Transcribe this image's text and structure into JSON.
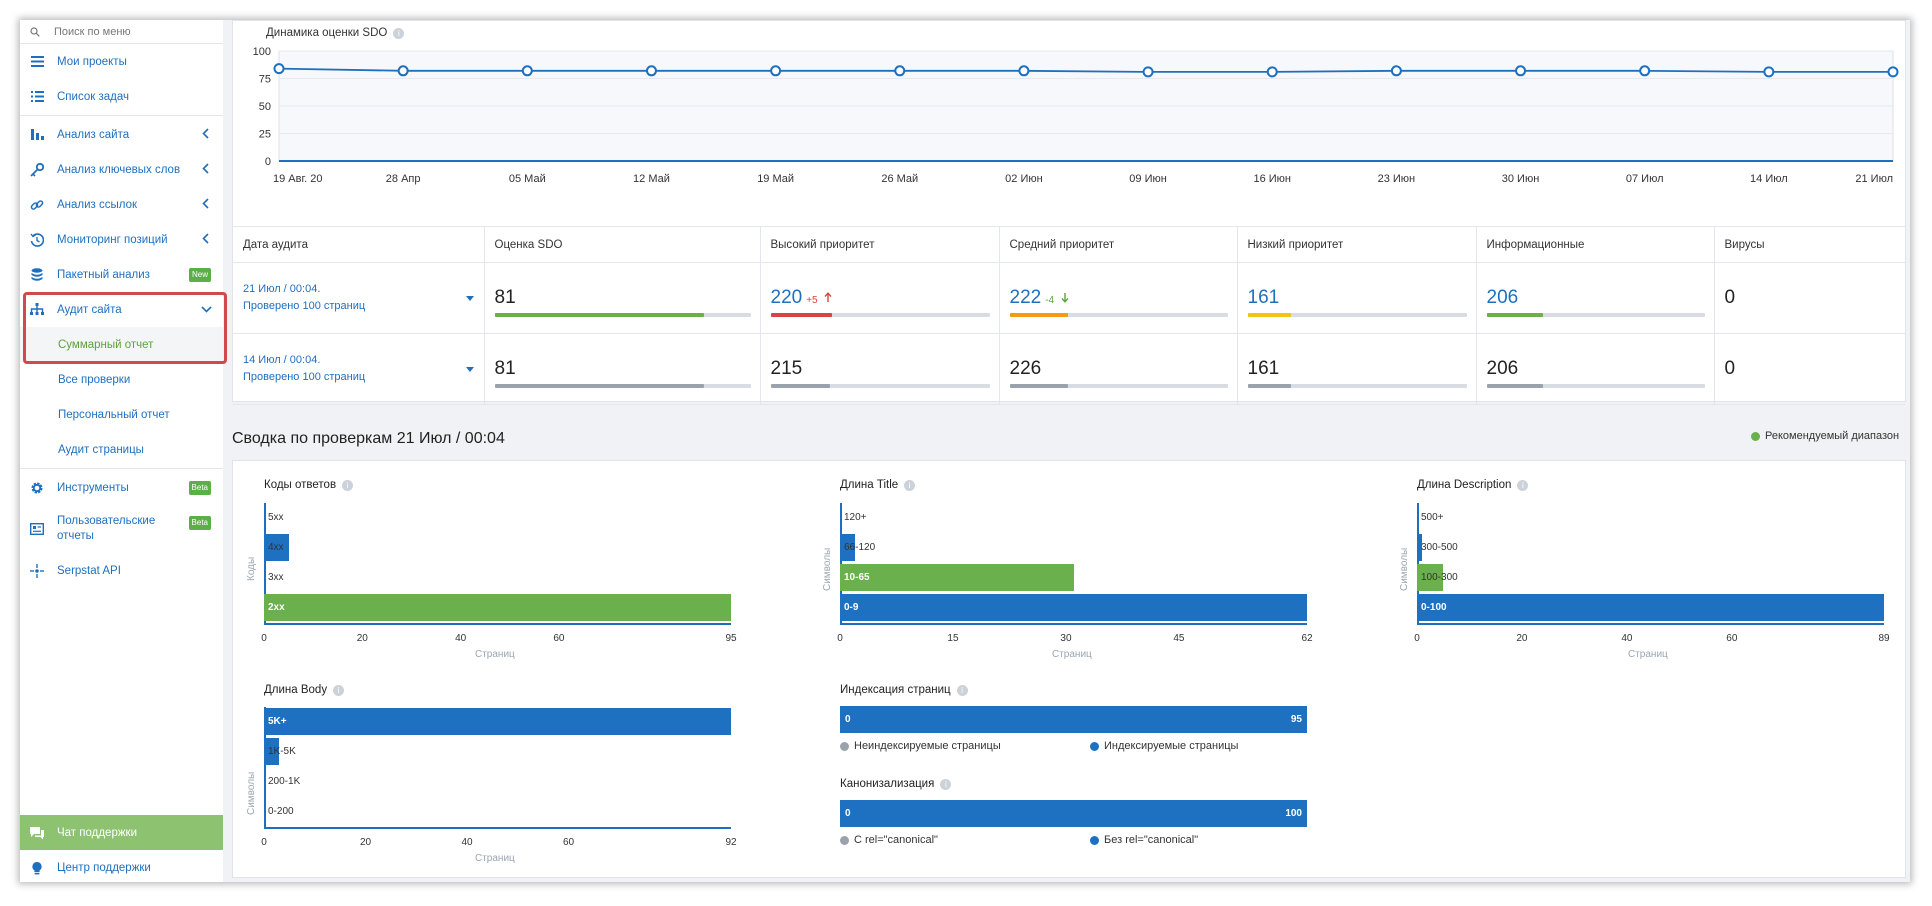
{
  "sidebar": {
    "search_placeholder": "Поиск по меню",
    "items": [
      {
        "label": "Мои проекты"
      },
      {
        "label": "Список задач"
      },
      {
        "label": "Анализ сайта"
      },
      {
        "label": "Анализ ключевых слов"
      },
      {
        "label": "Анализ ссылок"
      },
      {
        "label": "Мониторинг позиций"
      },
      {
        "label": "Пакетный анализ",
        "badge": "New"
      },
      {
        "label": "Аудит сайта"
      },
      {
        "label": "Инструменты",
        "badge": "Beta"
      },
      {
        "label": "Пользовательские отчеты",
        "badge": "Beta"
      },
      {
        "label": "Serpstat API"
      }
    ],
    "subitems": [
      {
        "label": "Суммарный отчет"
      },
      {
        "label": "Все проверки"
      },
      {
        "label": "Персональный отчет"
      },
      {
        "label": "Аудит страницы"
      }
    ],
    "chat": "Чат поддержки",
    "help": "Центр поддержки",
    "accent_active": "#5aa43a",
    "accent_link": "#1f6fbf",
    "highlight_color": "#cf4a4e"
  },
  "sdo_chart": {
    "title": "Динамика оценки SDO",
    "yticks": [
      "100",
      "75",
      "50",
      "25",
      "0"
    ],
    "chart_data": {
      "type": "line",
      "categories": [
        "19 Авг. 20",
        "28 Апр",
        "05 Май",
        "12 Май",
        "19 Май",
        "26 Май",
        "02 Июн",
        "09 Июн",
        "16 Июн",
        "23 Июн",
        "30 Июн",
        "07 Июл",
        "14 Июл",
        "21 Июл"
      ],
      "values": [
        84,
        82,
        82,
        82,
        82,
        82,
        82,
        81,
        81,
        82,
        82,
        82,
        81,
        81
      ],
      "ylim": [
        0,
        100
      ]
    }
  },
  "audit_table": {
    "headers": [
      "Дата аудита",
      "Оценка SDO",
      "Высокий приоритет",
      "Средний приоритет",
      "Низкий приоритет",
      "Информационные",
      "Вирусы"
    ],
    "rows": [
      {
        "date": "21 Июл / 00:04.",
        "checked": "Проверено 100 страниц",
        "sdo": "81",
        "sdo_fill": 0.82,
        "high": "220",
        "high_delta": "+5",
        "high_fill": 0.28,
        "mid": "222",
        "mid_delta": "-4",
        "mid_fill": 0.27,
        "low": "161",
        "low_fill": 0.2,
        "info": "206",
        "info_fill": 0.26,
        "virus": "0"
      },
      {
        "date": "14 Июл / 00:04.",
        "checked": "Проверено 100 страниц",
        "sdo": "81",
        "sdo_fill": 0.82,
        "high": "215",
        "high_fill": 0.27,
        "mid": "226",
        "mid_fill": 0.27,
        "low": "161",
        "low_fill": 0.2,
        "info": "206",
        "info_fill": 0.26,
        "virus": "0"
      }
    ]
  },
  "summary": {
    "title": "Сводка по проверкам 21 Июл / 00:04",
    "legend": "Рекомендуемый диапазон",
    "legend_color": "#6ab04c"
  },
  "charts": {
    "codes": {
      "title": "Коды ответов",
      "ylabel": "Коды",
      "xlabel": "Страниц",
      "xticks": [
        "0",
        "20",
        "40",
        "60",
        "95"
      ],
      "chart_data": {
        "type": "bar",
        "categories": [
          "5xx",
          "4xx",
          "3xx",
          "2xx"
        ],
        "values": [
          0,
          5,
          0,
          95
        ],
        "xlim": [
          0,
          95
        ],
        "recommended": "2xx"
      }
    },
    "title_len": {
      "title": "Длина Title",
      "ylabel": "Символы",
      "xlabel": "Страниц",
      "xticks": [
        "0",
        "15",
        "30",
        "45",
        "62"
      ],
      "chart_data": {
        "type": "bar",
        "categories": [
          "120+",
          "66-120",
          "10-65",
          "0-9"
        ],
        "values": [
          0,
          2,
          31,
          62
        ],
        "xlim": [
          0,
          62
        ],
        "recommended": "10-65"
      }
    },
    "desc_len": {
      "title": "Длина Description",
      "ylabel": "Символы",
      "xlabel": "Страниц",
      "xticks": [
        "0",
        "20",
        "40",
        "60",
        "89"
      ],
      "chart_data": {
        "type": "bar",
        "categories": [
          "500+",
          "300-500",
          "100-300",
          "0-100"
        ],
        "values": [
          0,
          1,
          5,
          89
        ],
        "xlim": [
          0,
          89
        ],
        "recommended": "100-300"
      }
    },
    "body_len": {
      "title": "Длина Body",
      "ylabel": "Символы",
      "xlabel": "Страниц",
      "xticks": [
        "0",
        "20",
        "40",
        "60",
        "92"
      ],
      "chart_data": {
        "type": "bar",
        "categories": [
          "5K+",
          "1K-5K",
          "200-1K",
          "0-200"
        ],
        "values": [
          92,
          3,
          0,
          0
        ],
        "xlim": [
          0,
          92
        ]
      }
    },
    "indexing": {
      "title": "Индексация страниц",
      "left_value": "0",
      "right_value": "95",
      "legend": [
        "Неиндексируемые страницы",
        "Индексируемые страницы"
      ]
    },
    "canonical": {
      "title": "Канонизализация",
      "left_value": "0",
      "right_value": "100",
      "legend": [
        "С rel=\"canonical\"",
        "Без rel=\"canonical\""
      ]
    }
  }
}
